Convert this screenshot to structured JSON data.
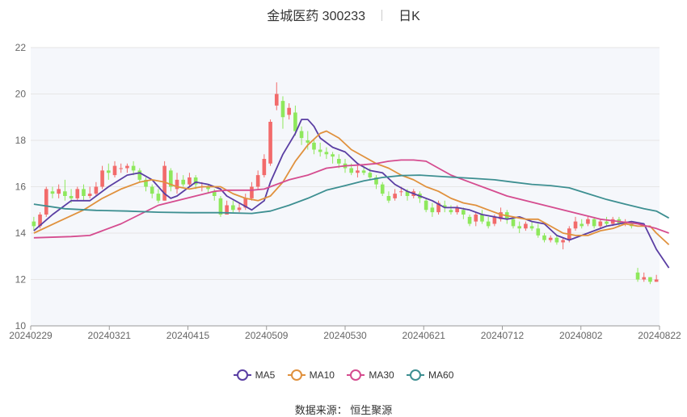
{
  "title": {
    "name": "金城医药 300233",
    "period": "日K"
  },
  "source": "数据来源： 恒生聚源",
  "colors": {
    "up": "#f26b6b",
    "down": "#8ee85c",
    "grid": "#e6e6e6",
    "plot_bg": "#f5f7fb"
  },
  "chart_data": {
    "type": "candlestick",
    "ylim": [
      10,
      22
    ],
    "yticks": [
      10,
      12,
      14,
      16,
      18,
      20,
      22
    ],
    "xlabels": [
      "20240229",
      "20240321",
      "20240415",
      "20240509",
      "20240530",
      "20240621",
      "20240712",
      "20240802",
      "20240822"
    ],
    "legend": "bottom",
    "ohlc": [
      [
        14.5,
        14.3,
        14.7,
        14.1
      ],
      [
        14.3,
        14.8,
        14.9,
        14.2
      ],
      [
        14.8,
        15.9,
        16.0,
        14.7
      ],
      [
        15.8,
        15.7,
        16.0,
        15.5
      ],
      [
        15.7,
        15.9,
        16.1,
        15.5
      ],
      [
        15.8,
        15.6,
        16.3,
        15.4
      ],
      [
        15.6,
        15.5,
        15.9,
        15.3
      ],
      [
        15.5,
        15.9,
        16.0,
        15.4
      ],
      [
        15.9,
        15.6,
        16.1,
        15.4
      ],
      [
        15.6,
        15.7,
        16.0,
        15.5
      ],
      [
        15.7,
        16.0,
        16.2,
        15.6
      ],
      [
        16.0,
        16.7,
        16.9,
        15.9
      ],
      [
        16.7,
        16.6,
        17.0,
        16.3
      ],
      [
        16.5,
        16.9,
        17.1,
        16.4
      ],
      [
        16.8,
        16.8,
        17.0,
        16.6
      ],
      [
        16.8,
        16.9,
        17.0,
        16.6
      ],
      [
        16.9,
        16.7,
        17.1,
        16.5
      ],
      [
        16.7,
        16.3,
        16.8,
        16.2
      ],
      [
        16.3,
        16.0,
        16.4,
        15.8
      ],
      [
        16.0,
        15.7,
        16.1,
        15.5
      ],
      [
        15.7,
        15.4,
        15.9,
        15.3
      ],
      [
        15.4,
        16.9,
        17.1,
        15.4
      ],
      [
        16.7,
        16.0,
        16.8,
        15.8
      ],
      [
        15.9,
        16.3,
        16.6,
        15.7
      ],
      [
        16.3,
        16.1,
        16.5,
        16.0
      ],
      [
        16.1,
        16.4,
        16.6,
        16.0
      ],
      [
        16.4,
        16.1,
        16.5,
        15.9
      ],
      [
        16.0,
        16.0,
        16.2,
        15.8
      ],
      [
        16.0,
        15.9,
        16.1,
        15.7
      ],
      [
        15.8,
        15.6,
        15.9,
        15.4
      ],
      [
        15.5,
        14.8,
        15.6,
        14.7
      ],
      [
        14.8,
        15.2,
        15.4,
        14.8
      ],
      [
        15.2,
        15.0,
        15.4,
        14.9
      ],
      [
        15.0,
        15.1,
        15.3,
        14.9
      ],
      [
        15.1,
        15.5,
        15.7,
        15.0
      ],
      [
        15.5,
        16.0,
        16.2,
        15.4
      ],
      [
        16.0,
        16.5,
        16.7,
        15.9
      ],
      [
        16.5,
        17.2,
        17.4,
        16.4
      ],
      [
        17.0,
        18.8,
        18.9,
        16.9
      ],
      [
        19.5,
        20.0,
        20.5,
        19.3
      ],
      [
        19.7,
        19.0,
        19.9,
        18.5
      ],
      [
        19.1,
        19.4,
        19.6,
        18.9
      ],
      [
        19.2,
        18.4,
        19.5,
        18.2
      ],
      [
        18.4,
        18.1,
        18.6,
        17.8
      ],
      [
        18.0,
        17.9,
        18.4,
        17.6
      ],
      [
        17.9,
        17.6,
        18.0,
        17.4
      ],
      [
        17.6,
        17.5,
        17.9,
        17.3
      ],
      [
        17.5,
        17.4,
        17.7,
        17.2
      ],
      [
        17.4,
        17.3,
        17.5,
        17.0
      ],
      [
        17.2,
        17.0,
        17.4,
        16.8
      ],
      [
        17.0,
        16.8,
        17.2,
        16.6
      ],
      [
        16.8,
        16.6,
        17.0,
        16.5
      ],
      [
        16.6,
        16.7,
        16.9,
        16.4
      ],
      [
        16.7,
        16.6,
        16.9,
        16.5
      ],
      [
        16.6,
        16.4,
        16.8,
        16.3
      ],
      [
        16.4,
        16.1,
        16.5,
        15.9
      ],
      [
        16.1,
        15.7,
        16.2,
        15.6
      ],
      [
        15.6,
        15.4,
        15.8,
        15.3
      ],
      [
        15.5,
        15.7,
        15.9,
        15.4
      ],
      [
        15.8,
        15.8,
        16.0,
        15.6
      ],
      [
        15.8,
        15.6,
        15.9,
        15.4
      ],
      [
        15.6,
        15.8,
        15.9,
        15.5
      ],
      [
        15.7,
        15.5,
        15.8,
        15.3
      ],
      [
        15.4,
        15.0,
        15.5,
        14.9
      ],
      [
        15.1,
        14.9,
        15.3,
        14.7
      ],
      [
        14.9,
        15.3,
        15.4,
        14.8
      ],
      [
        15.2,
        15.1,
        15.4,
        14.9
      ],
      [
        15.0,
        14.9,
        15.2,
        14.8
      ],
      [
        14.9,
        15.1,
        15.2,
        14.8
      ],
      [
        15.0,
        14.8,
        15.1,
        14.6
      ],
      [
        14.7,
        14.4,
        14.8,
        14.3
      ],
      [
        14.5,
        14.8,
        14.9,
        14.3
      ],
      [
        14.8,
        14.5,
        15.0,
        14.4
      ],
      [
        14.5,
        14.3,
        14.7,
        14.2
      ],
      [
        14.4,
        14.7,
        14.8,
        14.3
      ],
      [
        14.6,
        14.9,
        15.1,
        14.5
      ],
      [
        14.9,
        14.6,
        15.0,
        14.4
      ],
      [
        14.6,
        14.3,
        14.7,
        14.2
      ],
      [
        14.3,
        14.2,
        14.5,
        14.0
      ],
      [
        14.2,
        14.4,
        14.5,
        14.1
      ],
      [
        14.3,
        14.2,
        14.5,
        14.1
      ],
      [
        14.2,
        13.9,
        14.4,
        13.8
      ],
      [
        13.9,
        13.7,
        14.0,
        13.6
      ],
      [
        13.7,
        13.8,
        13.9,
        13.6
      ],
      [
        13.8,
        13.6,
        13.9,
        13.5
      ],
      [
        13.6,
        13.7,
        13.8,
        13.3
      ],
      [
        13.7,
        14.2,
        14.3,
        13.6
      ],
      [
        14.2,
        14.5,
        14.7,
        14.1
      ],
      [
        14.4,
        14.3,
        14.6,
        14.2
      ],
      [
        14.4,
        14.6,
        14.7,
        14.3
      ],
      [
        14.6,
        14.3,
        14.7,
        14.2
      ],
      [
        14.3,
        14.5,
        14.6,
        14.2
      ],
      [
        14.5,
        14.4,
        14.7,
        14.3
      ],
      [
        14.4,
        14.6,
        14.7,
        14.3
      ],
      [
        14.6,
        14.4,
        14.7,
        14.3
      ],
      [
        14.4,
        14.5,
        14.6,
        14.3
      ],
      [
        14.4,
        14.3,
        14.5,
        14.2
      ],
      [
        12.3,
        12.0,
        12.5,
        11.9
      ],
      [
        12.0,
        12.1,
        12.3,
        11.9
      ],
      [
        12.1,
        11.9,
        12.1,
        11.8
      ],
      [
        11.9,
        12.0,
        12.2,
        11.9
      ]
    ],
    "series": [
      {
        "name": "MA5",
        "color": "#5a3ea3",
        "points": [
          [
            0,
            14.1
          ],
          [
            3,
            14.8
          ],
          [
            6,
            15.4
          ],
          [
            9,
            15.4
          ],
          [
            12,
            16.0
          ],
          [
            15,
            16.5
          ],
          [
            17,
            16.6
          ],
          [
            19,
            16.3
          ],
          [
            21,
            15.7
          ],
          [
            22,
            15.5
          ],
          [
            23,
            15.6
          ],
          [
            25,
            16.0
          ],
          [
            26,
            16.2
          ],
          [
            28,
            16.1
          ],
          [
            30,
            15.9
          ],
          [
            31,
            15.6
          ],
          [
            33,
            15.3
          ],
          [
            35,
            15.0
          ],
          [
            37,
            15.4
          ],
          [
            38,
            16.2
          ],
          [
            40,
            17.4
          ],
          [
            42,
            18.3
          ],
          [
            43,
            18.9
          ],
          [
            44,
            18.9
          ],
          [
            45,
            18.6
          ],
          [
            46,
            18.1
          ],
          [
            48,
            17.7
          ],
          [
            50,
            17.5
          ],
          [
            52,
            17.0
          ],
          [
            54,
            16.7
          ],
          [
            56,
            16.6
          ],
          [
            58,
            16.1
          ],
          [
            60,
            15.8
          ],
          [
            62,
            15.6
          ],
          [
            64,
            15.4
          ],
          [
            66,
            15.1
          ],
          [
            68,
            15.1
          ],
          [
            70,
            15.0
          ],
          [
            72,
            14.8
          ],
          [
            74,
            14.7
          ],
          [
            76,
            14.6
          ],
          [
            78,
            14.7
          ],
          [
            80,
            14.5
          ],
          [
            82,
            14.4
          ],
          [
            84,
            13.9
          ],
          [
            86,
            13.7
          ],
          [
            88,
            13.9
          ],
          [
            90,
            14.1
          ],
          [
            92,
            14.3
          ],
          [
            94,
            14.4
          ],
          [
            96,
            14.5
          ],
          [
            98,
            14.4
          ],
          [
            100,
            13.3
          ],
          [
            102,
            12.5
          ]
        ]
      },
      {
        "name": "MA10",
        "color": "#e0913d",
        "points": [
          [
            0,
            14.0
          ],
          [
            4,
            14.5
          ],
          [
            8,
            15.0
          ],
          [
            11,
            15.5
          ],
          [
            14,
            15.9
          ],
          [
            17,
            16.2
          ],
          [
            19,
            16.3
          ],
          [
            21,
            16.2
          ],
          [
            23,
            16.0
          ],
          [
            25,
            15.9
          ],
          [
            27,
            16.0
          ],
          [
            30,
            16.0
          ],
          [
            32,
            15.7
          ],
          [
            34,
            15.5
          ],
          [
            36,
            15.4
          ],
          [
            38,
            15.6
          ],
          [
            40,
            16.2
          ],
          [
            42,
            17.1
          ],
          [
            44,
            17.8
          ],
          [
            46,
            18.3
          ],
          [
            47,
            18.4
          ],
          [
            49,
            18.1
          ],
          [
            51,
            17.6
          ],
          [
            53,
            17.3
          ],
          [
            55,
            17.0
          ],
          [
            57,
            16.8
          ],
          [
            59,
            16.5
          ],
          [
            61,
            16.3
          ],
          [
            63,
            16.0
          ],
          [
            65,
            15.8
          ],
          [
            67,
            15.5
          ],
          [
            69,
            15.3
          ],
          [
            71,
            15.2
          ],
          [
            73,
            15.0
          ],
          [
            75,
            14.8
          ],
          [
            77,
            14.7
          ],
          [
            79,
            14.6
          ],
          [
            81,
            14.6
          ],
          [
            83,
            14.3
          ],
          [
            85,
            14.0
          ],
          [
            87,
            13.9
          ],
          [
            89,
            13.9
          ],
          [
            91,
            14.1
          ],
          [
            93,
            14.2
          ],
          [
            95,
            14.4
          ],
          [
            97,
            14.3
          ],
          [
            99,
            14.3
          ],
          [
            100,
            14.0
          ],
          [
            102,
            13.5
          ]
        ]
      },
      {
        "name": "MA30",
        "color": "#d54c8f",
        "points": [
          [
            0,
            13.8
          ],
          [
            6,
            13.85
          ],
          [
            9,
            13.9
          ],
          [
            11,
            14.1
          ],
          [
            14,
            14.4
          ],
          [
            17,
            14.8
          ],
          [
            20,
            15.2
          ],
          [
            23,
            15.4
          ],
          [
            26,
            15.6
          ],
          [
            29,
            15.8
          ],
          [
            31,
            15.85
          ],
          [
            35,
            15.85
          ],
          [
            37,
            15.9
          ],
          [
            39,
            16.1
          ],
          [
            41,
            16.3
          ],
          [
            44,
            16.5
          ],
          [
            47,
            16.8
          ],
          [
            50,
            16.9
          ],
          [
            53,
            16.95
          ],
          [
            55,
            17.0
          ],
          [
            57,
            17.1
          ],
          [
            59,
            17.15
          ],
          [
            61,
            17.15
          ],
          [
            63,
            17.1
          ],
          [
            65,
            16.8
          ],
          [
            67,
            16.5
          ],
          [
            70,
            16.2
          ],
          [
            73,
            15.9
          ],
          [
            76,
            15.6
          ],
          [
            79,
            15.4
          ],
          [
            82,
            15.2
          ],
          [
            85,
            15.0
          ],
          [
            88,
            14.8
          ],
          [
            91,
            14.6
          ],
          [
            94,
            14.5
          ],
          [
            97,
            14.4
          ],
          [
            100,
            14.2
          ],
          [
            102,
            14.0
          ]
        ]
      },
      {
        "name": "MA60",
        "color": "#3d8f91",
        "points": [
          [
            0,
            15.25
          ],
          [
            5,
            15.05
          ],
          [
            10,
            14.98
          ],
          [
            15,
            14.95
          ],
          [
            20,
            14.9
          ],
          [
            25,
            14.88
          ],
          [
            30,
            14.88
          ],
          [
            35,
            14.85
          ],
          [
            38,
            14.95
          ],
          [
            41,
            15.2
          ],
          [
            44,
            15.5
          ],
          [
            47,
            15.85
          ],
          [
            50,
            16.05
          ],
          [
            53,
            16.25
          ],
          [
            56,
            16.4
          ],
          [
            59,
            16.48
          ],
          [
            62,
            16.5
          ],
          [
            65,
            16.45
          ],
          [
            68,
            16.4
          ],
          [
            71,
            16.35
          ],
          [
            74,
            16.3
          ],
          [
            77,
            16.2
          ],
          [
            80,
            16.1
          ],
          [
            83,
            16.05
          ],
          [
            86,
            15.95
          ],
          [
            89,
            15.7
          ],
          [
            92,
            15.45
          ],
          [
            95,
            15.25
          ],
          [
            98,
            15.05
          ],
          [
            100,
            14.95
          ],
          [
            102,
            14.65
          ]
        ]
      }
    ]
  }
}
